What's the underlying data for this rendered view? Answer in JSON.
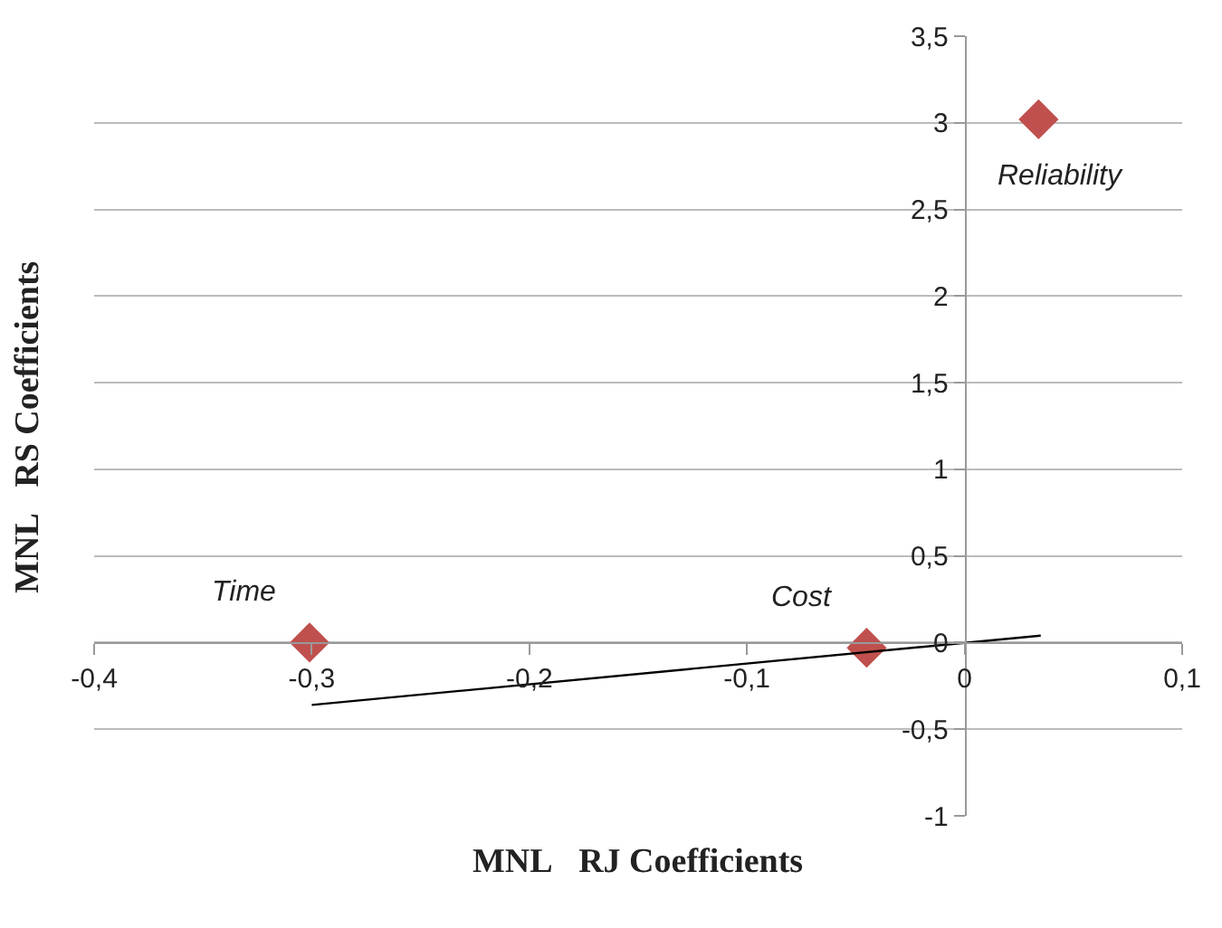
{
  "chart_data": {
    "type": "scatter",
    "xlabel": "MNL   RJ Coefficients",
    "ylabel": "MNL   RS Coefficients",
    "series": [
      {
        "color": "#c0504d",
        "marker": "diamond",
        "x": [
          -0.301,
          -0.045,
          0.034
        ],
        "values": [
          0.0,
          -0.03,
          3.02
        ]
      },
      {
        "type": "line",
        "color": "#000000",
        "marker": "none",
        "x": [
          -0.3,
          0.035
        ],
        "values": [
          -0.36,
          0.04
        ]
      }
    ],
    "annotations": [
      {
        "text": "Time",
        "x": -0.301,
        "y": 0.0
      },
      {
        "text": "Cost",
        "x": -0.045,
        "y": -0.03
      },
      {
        "text": "Reliability",
        "x": 0.034,
        "y": 3.02
      }
    ],
    "xlim": [
      -0.4,
      0.1
    ],
    "xticks": [
      {
        "value": -0.4,
        "label": "-0,4"
      },
      {
        "value": -0.3,
        "label": "-0,3"
      },
      {
        "value": -0.2,
        "label": "-0,2"
      },
      {
        "value": -0.1,
        "label": "-0,1"
      },
      0,
      {
        "value": 0.1,
        "label": "0,1"
      }
    ],
    "ylim": [
      -1,
      3.5
    ],
    "yticks": [
      -1,
      {
        "value": -0.5,
        "label": "-0,5"
      },
      0,
      {
        "value": 0.5,
        "label": "0,5"
      },
      1,
      {
        "value": 1.5,
        "label": "1,5"
      },
      2,
      {
        "value": 2.5,
        "label": "2,5"
      },
      3,
      {
        "value": 3.5,
        "label": "3,5"
      }
    ],
    "grid": "y"
  }
}
